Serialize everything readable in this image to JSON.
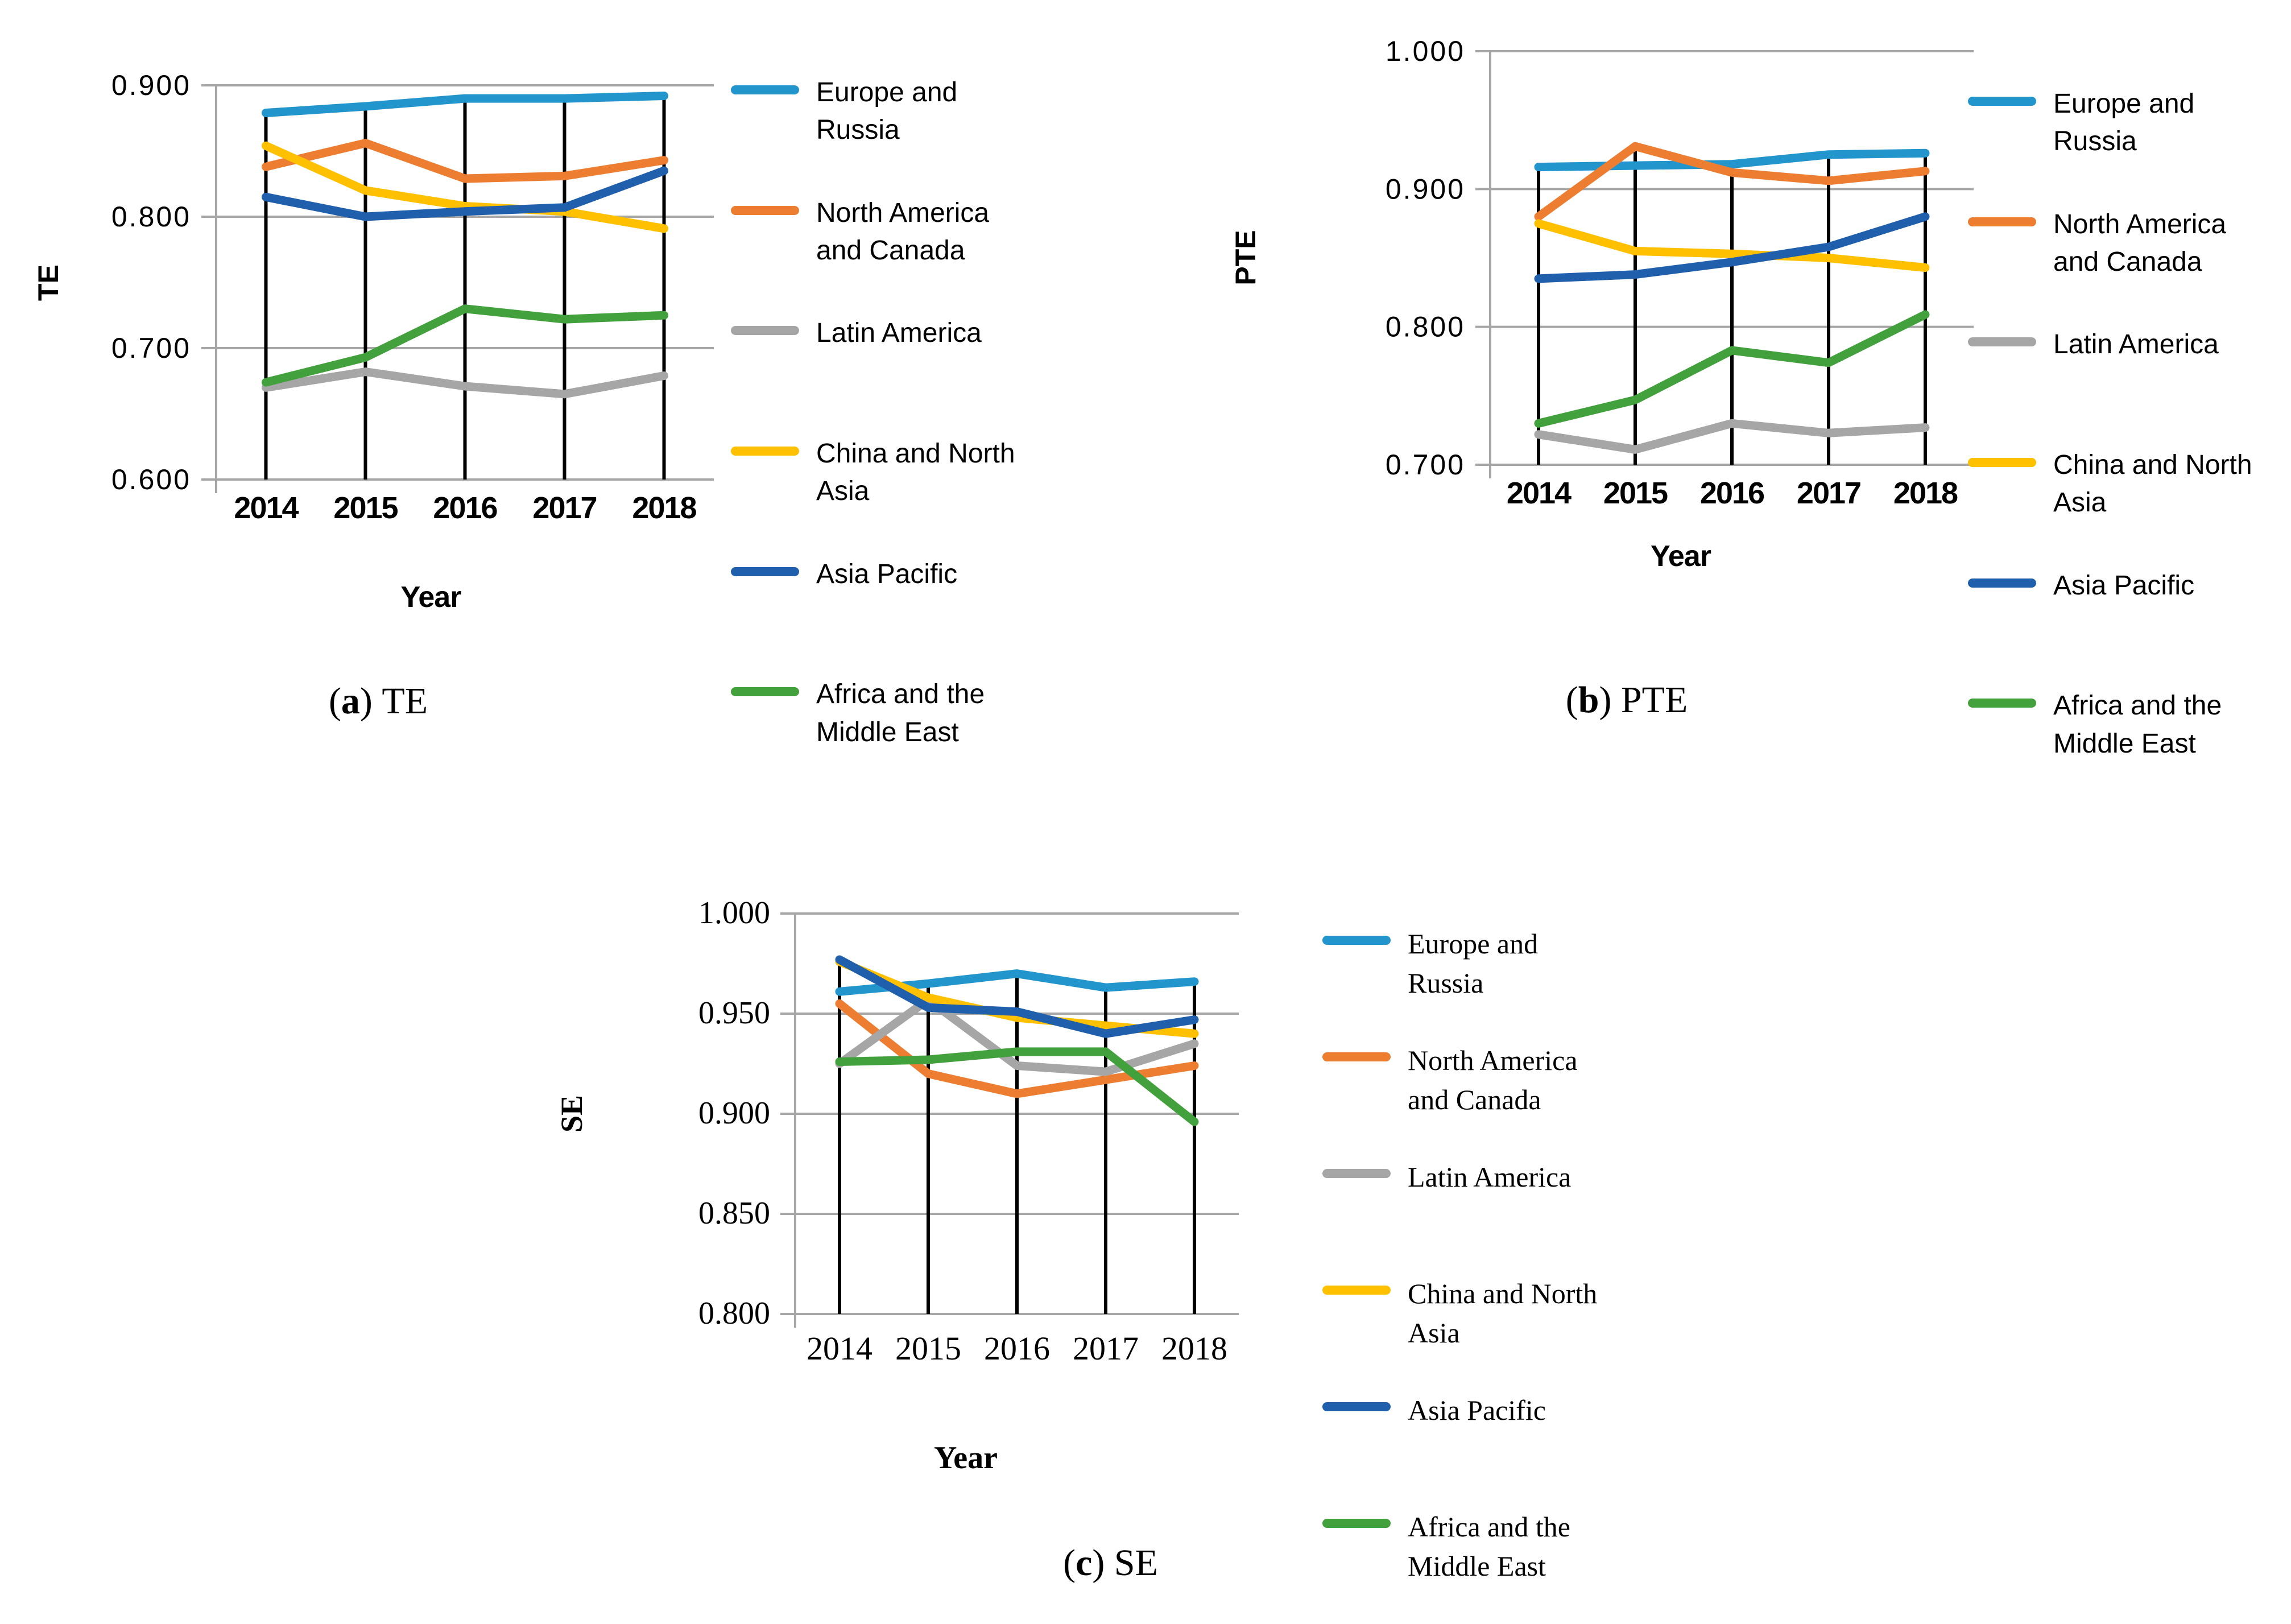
{
  "figure": {
    "style": {
      "grid_color": "#A6A6A6",
      "axis_color": "#A6A6A6",
      "dropline_color": "#000000",
      "background": "#FFFFFF"
    },
    "series_legend": [
      {
        "name": "Europe and Russia",
        "lines": [
          "Europe and",
          "Russia"
        ],
        "color": "#2395CD"
      },
      {
        "name": "North America and Canada",
        "lines": [
          "North America",
          "and Canada"
        ],
        "color": "#ED7D31"
      },
      {
        "name": "Latin America",
        "lines": [
          "Latin America"
        ],
        "color": "#A6A6A6"
      },
      {
        "name": "China and North Asia",
        "lines": [
          "China and North",
          "Asia"
        ],
        "color": "#FFC000"
      },
      {
        "name": "Asia Pacific",
        "lines": [
          "Asia Pacific"
        ],
        "color": "#1F5FAC"
      },
      {
        "name": "Africa and the Middle East",
        "lines": [
          "Africa and the",
          "Middle East"
        ],
        "color": "#42A13C"
      }
    ]
  },
  "chart_data": [
    {
      "id": "te",
      "type": "line",
      "caption_letter": "a",
      "caption_label": "TE",
      "ylabel": "TE",
      "xlabel": "Year",
      "ylim": [
        0.6,
        0.9
      ],
      "ytick_values": [
        0.9,
        0.8,
        0.7,
        0.6
      ],
      "ytick_labels": [
        "0.900",
        "0.800",
        "0.700",
        "0.600"
      ],
      "categories": [
        "2014",
        "2015",
        "2016",
        "2017",
        "2018"
      ],
      "grid": true,
      "legend_position": "right",
      "series": [
        {
          "name": "Europe and Russia",
          "values": [
            0.879,
            0.884,
            0.89,
            0.89,
            0.892
          ]
        },
        {
          "name": "North America and Canada",
          "values": [
            0.838,
            0.856,
            0.829,
            0.831,
            0.843
          ]
        },
        {
          "name": "Latin America",
          "values": [
            0.67,
            0.682,
            0.671,
            0.665,
            0.679
          ]
        },
        {
          "name": "China and North Asia",
          "values": [
            0.854,
            0.82,
            0.808,
            0.804,
            0.791
          ]
        },
        {
          "name": "Asia Pacific",
          "values": [
            0.815,
            0.8,
            0.804,
            0.807,
            0.835
          ]
        },
        {
          "name": "Africa and the Middle East",
          "values": [
            0.674,
            0.693,
            0.73,
            0.722,
            0.725
          ]
        }
      ]
    },
    {
      "id": "pte",
      "type": "line",
      "caption_letter": "b",
      "caption_label": "PTE",
      "ylabel": "PTE",
      "xlabel": "Year",
      "ylim": [
        0.7,
        1.0
      ],
      "ytick_values": [
        1.0,
        0.9,
        0.8,
        0.7
      ],
      "ytick_labels": [
        "1.000",
        "0.900",
        "0.800",
        "0.700"
      ],
      "categories": [
        "2014",
        "2015",
        "2016",
        "2017",
        "2018"
      ],
      "grid": true,
      "legend_position": "right",
      "series": [
        {
          "name": "Europe and Russia",
          "values": [
            0.916,
            0.917,
            0.918,
            0.925,
            0.926
          ]
        },
        {
          "name": "North America and Canada",
          "values": [
            0.88,
            0.931,
            0.912,
            0.906,
            0.913
          ]
        },
        {
          "name": "Latin America",
          "values": [
            0.722,
            0.711,
            0.73,
            0.723,
            0.727
          ]
        },
        {
          "name": "China and North Asia",
          "values": [
            0.875,
            0.855,
            0.853,
            0.85,
            0.843
          ]
        },
        {
          "name": "Asia Pacific",
          "values": [
            0.835,
            0.838,
            0.847,
            0.858,
            0.88
          ]
        },
        {
          "name": "Africa and the Middle East",
          "values": [
            0.73,
            0.747,
            0.783,
            0.774,
            0.809
          ]
        }
      ]
    },
    {
      "id": "se",
      "type": "line",
      "caption_letter": "c",
      "caption_label": "SE",
      "ylabel": "SE",
      "xlabel": "Year",
      "ylim": [
        0.8,
        1.0
      ],
      "ytick_values": [
        1.0,
        0.95,
        0.9,
        0.85,
        0.8
      ],
      "ytick_labels": [
        "1.000",
        "0.950",
        "0.900",
        "0.850",
        "0.800"
      ],
      "categories": [
        "2014",
        "2015",
        "2016",
        "2017",
        "2018"
      ],
      "grid": true,
      "legend_position": "right",
      "series": [
        {
          "name": "Europe and Russia",
          "values": [
            0.961,
            0.965,
            0.97,
            0.963,
            0.966
          ]
        },
        {
          "name": "North America and Canada",
          "values": [
            0.955,
            0.92,
            0.91,
            0.917,
            0.924
          ]
        },
        {
          "name": "Latin America",
          "values": [
            0.925,
            0.957,
            0.924,
            0.921,
            0.935
          ]
        },
        {
          "name": "China and North Asia",
          "values": [
            0.976,
            0.958,
            0.948,
            0.944,
            0.94
          ]
        },
        {
          "name": "Asia Pacific",
          "values": [
            0.977,
            0.953,
            0.951,
            0.94,
            0.947
          ]
        },
        {
          "name": "Africa and the Middle East",
          "values": [
            0.926,
            0.927,
            0.931,
            0.931,
            0.896
          ]
        }
      ]
    }
  ]
}
